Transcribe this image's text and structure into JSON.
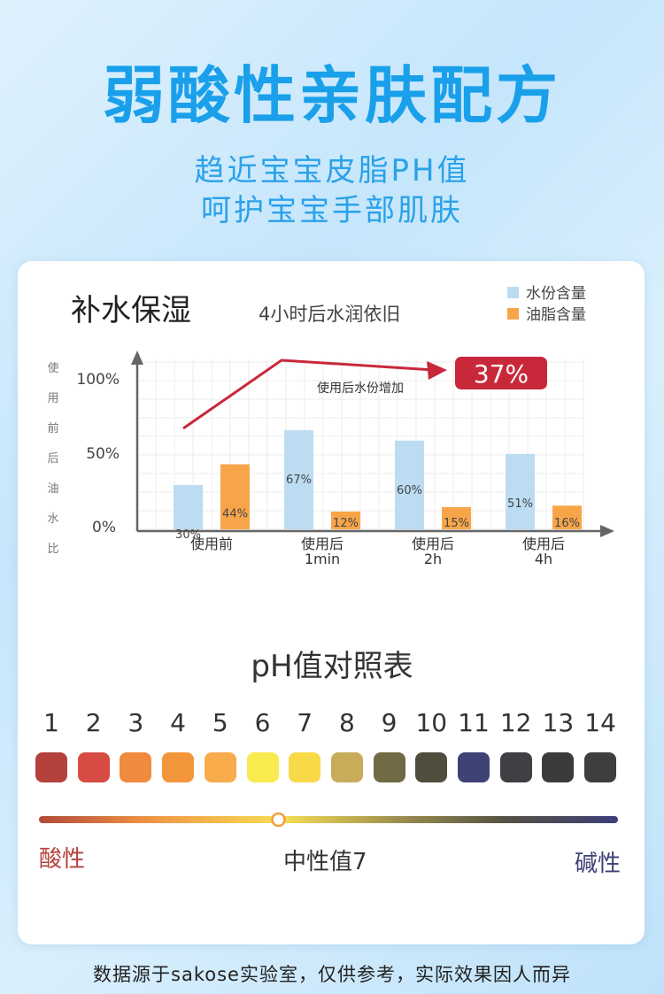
{
  "header": {
    "title": "弱酸性亲肤配方",
    "subtitle_line1": "趋近宝宝皮脂PH值",
    "subtitle_line2": "呵护宝宝手部肌肤"
  },
  "chart_data": {
    "type": "bar",
    "title": "补水保湿",
    "subtitle": "4小时后水润依旧",
    "ylabel": "使用前后油水比",
    "categories": [
      "使用前",
      "使用后\n1min",
      "使用后\n2h",
      "使用后\n4h"
    ],
    "series": [
      {
        "name": "水份含量",
        "values": [
          30,
          67,
          60,
          51
        ],
        "labels": [
          "30%",
          "67%",
          "60%",
          "51%"
        ],
        "color": "#bcdcf2"
      },
      {
        "name": "油脂含量",
        "values": [
          44,
          12,
          15,
          16
        ],
        "labels": [
          "44%",
          "12%",
          "15%",
          "16%"
        ],
        "color": "#f8a54a"
      }
    ],
    "yticks": [
      "100%",
      "50%",
      "0%"
    ],
    "ylim": [
      0,
      120
    ],
    "annotation_text": "使用后水份增加",
    "highlight_value": "37%",
    "grid": true,
    "legend": "top-right"
  },
  "ph_table": {
    "title": "pH值对照表",
    "scale": [
      {
        "label": "1",
        "color": "#b5413d"
      },
      {
        "label": "2",
        "color": "#d64c43"
      },
      {
        "label": "3",
        "color": "#f08a3c"
      },
      {
        "label": "4",
        "color": "#f3963b"
      },
      {
        "label": "5",
        "color": "#f7ab4a"
      },
      {
        "label": "6",
        "color": "#f9ea50"
      },
      {
        "label": "7",
        "color": "#f8d948"
      },
      {
        "label": "8",
        "color": "#c8ac5a"
      },
      {
        "label": "9",
        "color": "#706a45"
      },
      {
        "label": "10",
        "color": "#4f4d3c"
      },
      {
        "label": "11",
        "color": "#3e4275"
      },
      {
        "label": "12",
        "color": "#3f4043"
      },
      {
        "label": "13",
        "color": "#3b3b3e"
      },
      {
        "label": "14",
        "color": "#3e3e40"
      }
    ],
    "acid_label": "酸性",
    "neutral_label": "中性值7",
    "alkaline_label": "碱性",
    "marker_value": 6
  },
  "footer": {
    "text": "数据源于sakose实验室，仅供参考，实际效果因人而异"
  }
}
